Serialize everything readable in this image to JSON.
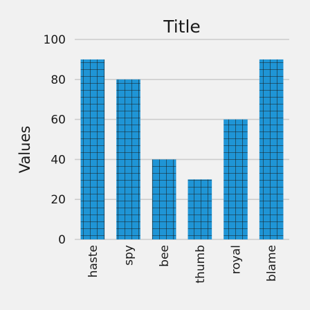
{
  "chart_data": {
    "type": "bar",
    "title": "Title",
    "xlabel": "",
    "ylabel": "Values",
    "categories": [
      "haste",
      "spy",
      "bee",
      "thumb",
      "royal",
      "blame"
    ],
    "values": [
      90,
      80,
      40,
      30,
      60,
      90
    ],
    "ylim": [
      0,
      100
    ],
    "yticks": [
      0,
      20,
      40,
      60,
      80,
      100
    ],
    "grid": "horizontal",
    "bar_color": "#1f95d6",
    "bar_pattern": "grid-hatch",
    "background": "#f1f1f1",
    "grid_color": "#cccccc"
  }
}
